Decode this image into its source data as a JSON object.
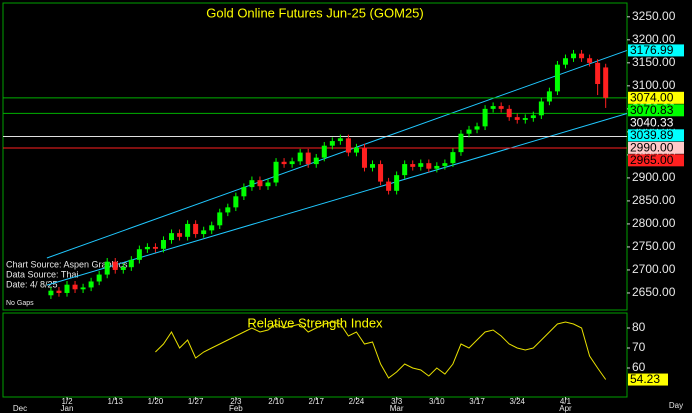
{
  "chart_data": {
    "type": "candlestick",
    "title": "Gold Online Futures Jun-25 (GOM25)",
    "source_lines": [
      "Chart Source: Aspen Graphics",
      "Data Source: Thai",
      "Date:   4/ 8/25"
    ],
    "note": "No Gaps",
    "categories": [
      null,
      null,
      "1/2",
      null,
      null,
      null,
      null,
      null,
      "1/13",
      null,
      null,
      null,
      null,
      "1/20",
      null,
      null,
      null,
      null,
      "1/27",
      null,
      null,
      null,
      null,
      "2/3",
      null,
      null,
      null,
      null,
      "2/10",
      null,
      null,
      null,
      null,
      "2/17",
      null,
      null,
      null,
      null,
      "2/24",
      null,
      null,
      null,
      null,
      "3/3",
      null,
      null,
      null,
      null,
      "3/10",
      null,
      null,
      null,
      null,
      "3/17",
      null,
      null,
      null,
      null,
      "3/24",
      null,
      null,
      null,
      null,
      null,
      "4/1",
      null,
      null,
      null,
      null,
      null
    ],
    "months": [
      "Dec",
      "Jan",
      "Feb",
      "Mar",
      "Apr"
    ],
    "x_unit": "Day",
    "open": [
      2645,
      2655,
      2650,
      2668,
      2658,
      2662,
      2675,
      2690,
      2718,
      2700,
      2706,
      2722,
      2745,
      2750,
      2746,
      2765,
      2780,
      2772,
      2800,
      2778,
      2786,
      2797,
      2825,
      2836,
      2860,
      2880,
      2895,
      2882,
      2890,
      2935,
      2930,
      2936,
      2955,
      2930,
      2944,
      2970,
      2980,
      2986,
      2955,
      2966,
      2922,
      2930,
      2892,
      2872,
      2906,
      2930,
      2924,
      2932,
      2920,
      2926,
      2932,
      2956,
      2996,
      3005,
      3012,
      3050,
      3056,
      3050,
      3032,
      3026,
      3030,
      3036,
      3066,
      3088,
      3146,
      3160,
      3170,
      3160,
      3150,
      3140
    ],
    "high": [
      2663,
      2663,
      2676,
      2676,
      2670,
      2683,
      2698,
      2726,
      2726,
      2714,
      2730,
      2753,
      2758,
      2758,
      2773,
      2788,
      2788,
      2808,
      2808,
      2794,
      2805,
      2833,
      2844,
      2868,
      2888,
      2903,
      2903,
      2898,
      2943,
      2943,
      2944,
      2963,
      2963,
      2952,
      2978,
      2988,
      2994,
      2994,
      2974,
      2974,
      2938,
      2938,
      2900,
      2914,
      2938,
      2938,
      2940,
      2940,
      2934,
      2940,
      2964,
      3004,
      3013,
      3020,
      3058,
      3064,
      3064,
      3058,
      3040,
      3038,
      3044,
      3074,
      3096,
      3154,
      3168,
      3178,
      3178,
      3168,
      3158,
      3148
    ],
    "low": [
      2637,
      2642,
      2642,
      2650,
      2650,
      2654,
      2667,
      2682,
      2692,
      2692,
      2698,
      2714,
      2737,
      2738,
      2738,
      2757,
      2764,
      2764,
      2770,
      2770,
      2778,
      2789,
      2817,
      2828,
      2852,
      2872,
      2874,
      2874,
      2882,
      2922,
      2922,
      2928,
      2922,
      2922,
      2936,
      2962,
      2972,
      2947,
      2947,
      2914,
      2914,
      2884,
      2864,
      2864,
      2898,
      2916,
      2916,
      2912,
      2912,
      2918,
      2924,
      2948,
      2988,
      2997,
      3004,
      3042,
      3042,
      3024,
      3018,
      3018,
      3022,
      3028,
      3058,
      3080,
      3138,
      3152,
      3152,
      3142,
      3080,
      3052
    ],
    "close": [
      2655,
      2650,
      2668,
      2658,
      2662,
      2675,
      2690,
      2718,
      2700,
      2706,
      2722,
      2745,
      2750,
      2746,
      2765,
      2780,
      2772,
      2800,
      2778,
      2786,
      2797,
      2825,
      2836,
      2860,
      2880,
      2895,
      2882,
      2890,
      2935,
      2930,
      2936,
      2955,
      2930,
      2944,
      2970,
      2980,
      2986,
      2955,
      2966,
      2922,
      2930,
      2892,
      2872,
      2906,
      2930,
      2924,
      2932,
      2920,
      2926,
      2932,
      2956,
      2996,
      3005,
      3012,
      3050,
      3056,
      3050,
      3032,
      3026,
      3030,
      3036,
      3066,
      3088,
      3146,
      3160,
      3170,
      3160,
      3150,
      3104,
      3074
    ],
    "up_color": "#00ff00",
    "down_color": "#ff2020",
    "ylim": [
      2613,
      3280
    ],
    "yticks": [
      {
        "value": 2650,
        "label": "2650.00"
      },
      {
        "value": 2700,
        "label": "2700.00"
      },
      {
        "value": 2750,
        "label": "2750.00"
      },
      {
        "value": 2800,
        "label": "2800.00"
      },
      {
        "value": 2850,
        "label": "2850.00"
      },
      {
        "value": 2900,
        "label": "2900.00"
      },
      {
        "value": 2950,
        "label": "2950.00"
      },
      {
        "value": 3000,
        "label": "3000.00"
      },
      {
        "value": 3050,
        "label": "3050.00"
      },
      {
        "value": 3100,
        "label": "3100.00"
      },
      {
        "value": 3150,
        "label": "3150.00"
      },
      {
        "value": 3200,
        "label": "3200.00"
      },
      {
        "value": 3250,
        "label": "3250.00"
      }
    ],
    "channel": {
      "color": "#20c8ff",
      "upper_start": 2726,
      "lower_start": 2667
    },
    "tags": [
      {
        "value": 3176.99,
        "color": "#00ffff",
        "text_color": "#000000",
        "channel": "upper"
      },
      {
        "value": 3074,
        "label": "3074.00",
        "color": "#ffff00",
        "text_color": "#000000",
        "line_color": "#00b000"
      },
      {
        "value": 3070.83,
        "color": "#00ff00",
        "text_color": "#000000"
      },
      {
        "value": 3040.33,
        "color": "#000000",
        "text_color": "#ffffff",
        "line_color": "#00b000"
      },
      {
        "value": 3039.89,
        "color": "#00ffff",
        "text_color": "#000000",
        "channel": "lower"
      },
      {
        "value": 2990,
        "label": "2990.00",
        "color": "#ffc8c8",
        "text_color": "#000000",
        "line_color": "#e0e0e0"
      },
      {
        "value": 2965,
        "label": "2965.00",
        "color": "#ff2020",
        "text_color": "#000000",
        "line_color": "#ff2020"
      }
    ],
    "rsi": {
      "title": "Relative Strength Index",
      "color": "#e8e000",
      "values": [
        null,
        null,
        null,
        null,
        null,
        null,
        null,
        null,
        null,
        null,
        null,
        null,
        null,
        68,
        72,
        78,
        70,
        74,
        65,
        68,
        70,
        72,
        74,
        76,
        78,
        80,
        78,
        79,
        82,
        80,
        81,
        82,
        78,
        80,
        82,
        83,
        82,
        76,
        78,
        72,
        73,
        62,
        55,
        58,
        62,
        60,
        59,
        56,
        60,
        57,
        62,
        72,
        70,
        74,
        78,
        79,
        76,
        72,
        70,
        69,
        70,
        74,
        78,
        82,
        83,
        82,
        80,
        66,
        60,
        54.23
      ],
      "ylim": [
        45.5,
        87.5
      ],
      "yticks": [
        60,
        70,
        80
      ],
      "last_label": {
        "value": 54.23,
        "color": "#ffff00"
      }
    }
  }
}
